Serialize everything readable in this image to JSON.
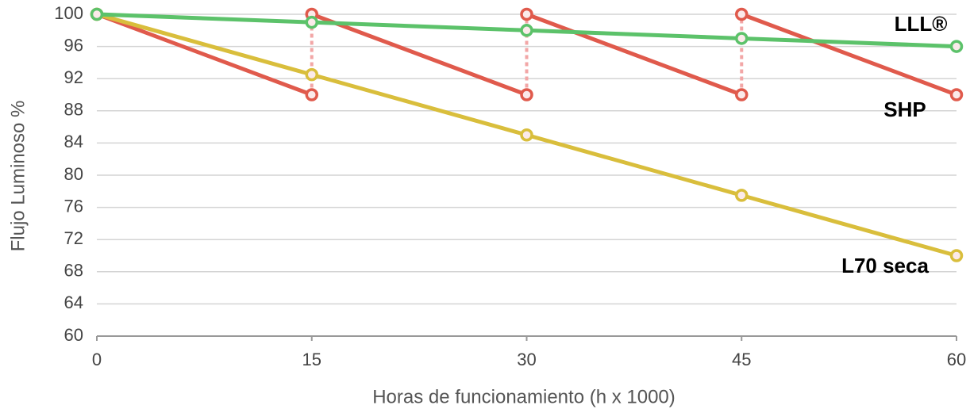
{
  "chart_data": {
    "type": "line",
    "xlabel": "Horas de funcionamiento (h x 1000)",
    "ylabel": "Flujo Luminoso %",
    "xlim": [
      0,
      60
    ],
    "xticks": [
      0,
      15,
      30,
      45,
      60
    ],
    "ylim": [
      60,
      100
    ],
    "yticks": [
      60,
      64,
      68,
      72,
      76,
      80,
      84,
      88,
      92,
      96,
      100
    ],
    "grid": true,
    "series": [
      {
        "name": "SHP",
        "color": "#e05a4c",
        "x": [
          0,
          15,
          15,
          15,
          30,
          30,
          30,
          45,
          45,
          45,
          60
        ],
        "values": [
          100,
          90,
          null,
          100,
          90,
          null,
          100,
          90,
          null,
          100,
          90
        ]
      },
      {
        "name": "L70 seca",
        "color": "#d9be3c",
        "x": [
          0,
          15,
          30,
          45,
          60
        ],
        "values": [
          100,
          92.5,
          85,
          77.5,
          70
        ]
      },
      {
        "name": "LLL®",
        "color": "#5cc26a",
        "x": [
          0,
          15,
          30,
          45,
          60
        ],
        "values": [
          100,
          99,
          98,
          97,
          96
        ]
      }
    ]
  }
}
